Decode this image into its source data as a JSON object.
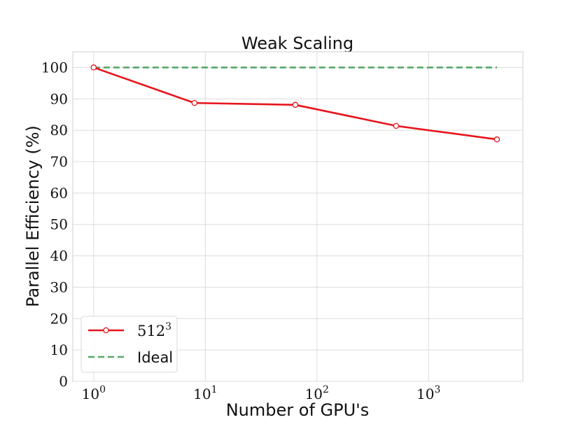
{
  "chart_data": {
    "type": "line",
    "title": "Weak Scaling",
    "xlabel": "Number of GPU's",
    "ylabel": "Parallel Efficiency (%)",
    "xscale": "log",
    "xlim": [
      0.65,
      7000
    ],
    "ylim": [
      0,
      105
    ],
    "grid": true,
    "legend_position": "bottom-left",
    "x_ticks": [
      {
        "base": "10",
        "exp": "0",
        "value": 1
      },
      {
        "base": "10",
        "exp": "1",
        "value": 10
      },
      {
        "base": "10",
        "exp": "2",
        "value": 100
      },
      {
        "base": "10",
        "exp": "3",
        "value": 1000
      }
    ],
    "y_ticks": [
      0,
      10,
      20,
      30,
      40,
      50,
      60,
      70,
      80,
      90,
      100
    ],
    "series": [
      {
        "name_base": "512",
        "name_exp": "3",
        "color": "#e8141c",
        "style": "solid-marker",
        "x": [
          1,
          8,
          64,
          512,
          4096
        ],
        "y": [
          100,
          88.7,
          88.1,
          81.4,
          77.1
        ]
      },
      {
        "name": "Ideal",
        "color": "#55a868",
        "style": "dashed",
        "x": [
          1,
          4096
        ],
        "y": [
          100,
          100
        ]
      }
    ]
  }
}
